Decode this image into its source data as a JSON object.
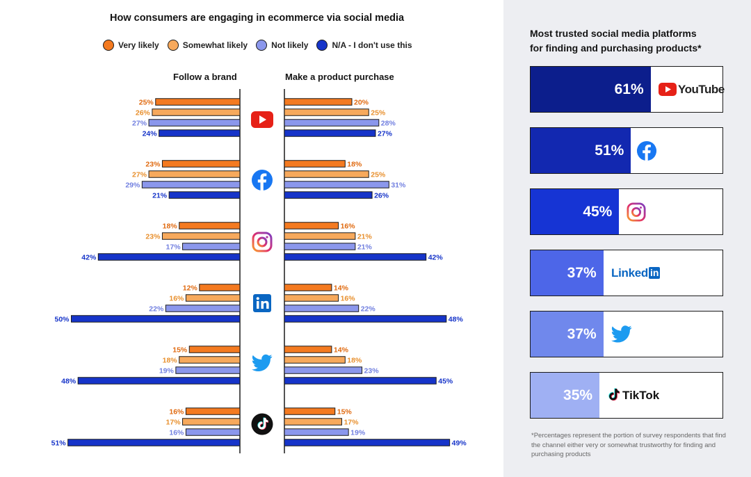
{
  "left_title": "How consumers are engaging in ecommerce via social media",
  "legend": [
    {
      "label": "Very likely",
      "color": "#f47a20"
    },
    {
      "label": "Somewhat likely",
      "color": "#f7a95c"
    },
    {
      "label": "Not likely",
      "color": "#8b97ec"
    },
    {
      "label": "N/A - I don't use this",
      "color": "#1634c9"
    }
  ],
  "chart_data": {
    "type": "bar",
    "orientation": "horizontal-diverging",
    "title": "How consumers are engaging in ecommerce via social media",
    "groups": [
      "Follow a brand",
      "Make a product purchase"
    ],
    "categories": [
      "YouTube",
      "Facebook",
      "Instagram",
      "LinkedIn",
      "Twitter",
      "TikTok"
    ],
    "series": [
      {
        "name": "Very likely",
        "follow": [
          25,
          23,
          18,
          12,
          15,
          16
        ],
        "purchase": [
          20,
          18,
          16,
          14,
          14,
          15
        ]
      },
      {
        "name": "Somewhat likely",
        "follow": [
          26,
          27,
          23,
          16,
          18,
          17
        ],
        "purchase": [
          25,
          25,
          21,
          16,
          18,
          17
        ]
      },
      {
        "name": "Not likely",
        "follow": [
          27,
          29,
          17,
          22,
          19,
          16
        ],
        "purchase": [
          28,
          31,
          21,
          22,
          23,
          19
        ]
      },
      {
        "name": "N/A - I don't use this",
        "follow": [
          24,
          21,
          42,
          50,
          48,
          51
        ],
        "purchase": [
          27,
          26,
          42,
          48,
          45,
          49
        ]
      }
    ],
    "value_suffix": "%"
  },
  "columns": {
    "follow": "Follow a brand",
    "purchase": "Make a product purchase"
  },
  "trusted": {
    "title_line1": "Most trusted social media platforms",
    "title_line2": "for finding and purchasing products*",
    "rows": [
      {
        "platform": "YouTube",
        "value": 61,
        "label": "61%",
        "color": "#0c1e8c"
      },
      {
        "platform": "Facebook",
        "value": 51,
        "label": "51%",
        "color": "#1228b0"
      },
      {
        "platform": "Instagram",
        "value": 45,
        "label": "45%",
        "color": "#1634d4"
      },
      {
        "platform": "LinkedIn",
        "value": 37,
        "label": "37%",
        "color": "#4d66e8"
      },
      {
        "platform": "Twitter",
        "value": 37,
        "label": "37%",
        "color": "#7088ec"
      },
      {
        "platform": "TikTok",
        "value": 35,
        "label": "35%",
        "color": "#9fb0f3"
      }
    ],
    "logos": {
      "youtube": "YouTube",
      "linkedin_a": "Linked",
      "linkedin_b": "in",
      "tiktok": "TikTok"
    },
    "footnote": "*Percentages represent the portion of survey respondents that find the channel either very or somewhat trustworthy for finding and purchasing products"
  }
}
